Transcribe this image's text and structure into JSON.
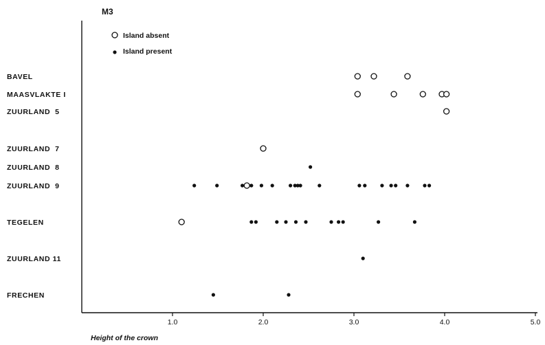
{
  "chart_data": {
    "type": "scatter",
    "title": "M3",
    "xlabel": "Height of the crown",
    "ylabel": "",
    "xlim": [
      0,
      5.0
    ],
    "x_ticks": [
      "1.0",
      "2.0",
      "3.0",
      "4.0",
      "5.0"
    ],
    "x_tick_values": [
      1.0,
      2.0,
      3.0,
      4.0,
      5.0
    ],
    "categories": [
      "BAVEL",
      "MAASVLAKTE I",
      "ZUURLAND  5",
      "ZUURLAND  7",
      "ZUURLAND  8",
      "ZUURLAND  9",
      "TEGELEN",
      "ZUURLAND 11",
      "FRECHEN"
    ],
    "legend_position": "top-left",
    "grid": false,
    "series": [
      {
        "name": "Island absent",
        "marker": "open-circle",
        "points": [
          {
            "category": "BAVEL",
            "x": 3.04
          },
          {
            "category": "BAVEL",
            "x": 3.22
          },
          {
            "category": "BAVEL",
            "x": 3.59
          },
          {
            "category": "MAASVLAKTE I",
            "x": 3.04
          },
          {
            "category": "MAASVLAKTE I",
            "x": 3.44
          },
          {
            "category": "MAASVLAKTE I",
            "x": 3.76
          },
          {
            "category": "MAASVLAKTE I",
            "x": 3.97
          },
          {
            "category": "MAASVLAKTE I",
            "x": 4.02
          },
          {
            "category": "ZUURLAND  5",
            "x": 4.02
          },
          {
            "category": "ZUURLAND  7",
            "x": 2.0
          },
          {
            "category": "ZUURLAND  9",
            "x": 1.82
          },
          {
            "category": "TEGELEN",
            "x": 1.1
          }
        ]
      },
      {
        "name": "Island present",
        "marker": "filled-dot",
        "points": [
          {
            "category": "ZUURLAND  8",
            "x": 2.52
          },
          {
            "category": "ZUURLAND  9",
            "x": 1.24
          },
          {
            "category": "ZUURLAND  9",
            "x": 1.49
          },
          {
            "category": "ZUURLAND  9",
            "x": 1.77
          },
          {
            "category": "ZUURLAND  9",
            "x": 1.87
          },
          {
            "category": "ZUURLAND  9",
            "x": 1.98
          },
          {
            "category": "ZUURLAND  9",
            "x": 2.1
          },
          {
            "category": "ZUURLAND  9",
            "x": 2.3
          },
          {
            "category": "ZUURLAND  9",
            "x": 2.35
          },
          {
            "category": "ZUURLAND  9",
            "x": 2.38
          },
          {
            "category": "ZUURLAND  9",
            "x": 2.41
          },
          {
            "category": "ZUURLAND  9",
            "x": 2.62
          },
          {
            "category": "ZUURLAND  9",
            "x": 3.06
          },
          {
            "category": "ZUURLAND  9",
            "x": 3.12
          },
          {
            "category": "ZUURLAND  9",
            "x": 3.31
          },
          {
            "category": "ZUURLAND  9",
            "x": 3.41
          },
          {
            "category": "ZUURLAND  9",
            "x": 3.46
          },
          {
            "category": "ZUURLAND  9",
            "x": 3.59
          },
          {
            "category": "ZUURLAND  9",
            "x": 3.78
          },
          {
            "category": "ZUURLAND  9",
            "x": 3.83
          },
          {
            "category": "TEGELEN",
            "x": 1.87
          },
          {
            "category": "TEGELEN",
            "x": 1.92
          },
          {
            "category": "TEGELEN",
            "x": 2.15
          },
          {
            "category": "TEGELEN",
            "x": 2.25
          },
          {
            "category": "TEGELEN",
            "x": 2.36
          },
          {
            "category": "TEGELEN",
            "x": 2.47
          },
          {
            "category": "TEGELEN",
            "x": 2.75
          },
          {
            "category": "TEGELEN",
            "x": 2.83
          },
          {
            "category": "TEGELEN",
            "x": 2.88
          },
          {
            "category": "TEGELEN",
            "x": 3.27
          },
          {
            "category": "TEGELEN",
            "x": 3.67
          },
          {
            "category": "ZUURLAND 11",
            "x": 3.1
          },
          {
            "category": "FRECHEN",
            "x": 1.45
          },
          {
            "category": "FRECHEN",
            "x": 2.28
          }
        ]
      }
    ]
  }
}
